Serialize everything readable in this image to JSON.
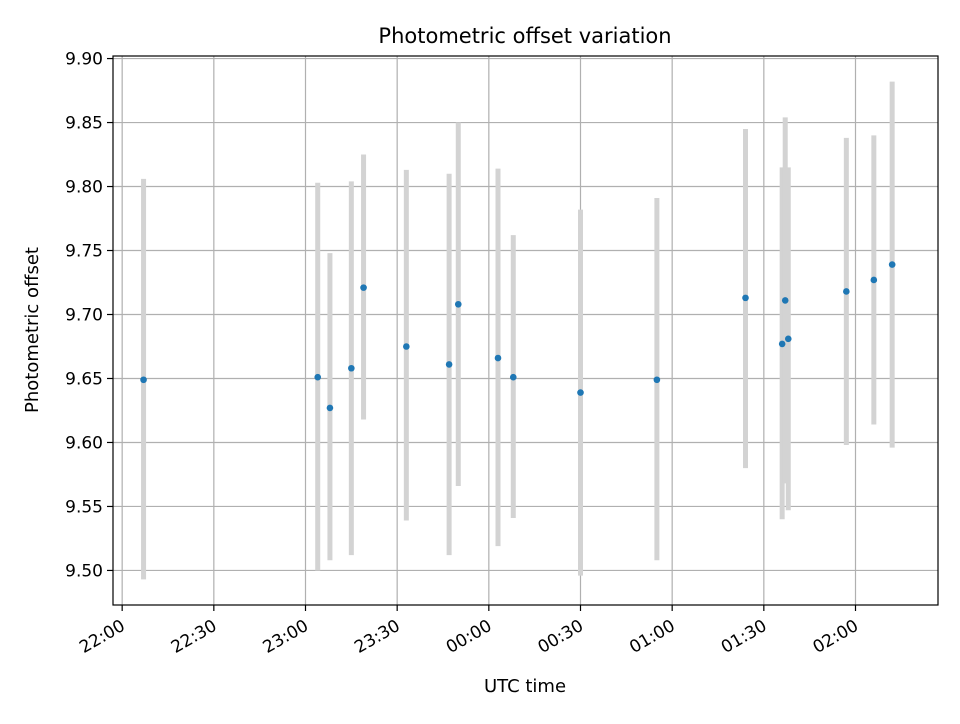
{
  "chart_data": {
    "type": "scatter",
    "title": "Photometric offset variation",
    "xlabel": "UTC time",
    "ylabel": "Photometric offset",
    "x_ticks": [
      "22:00",
      "22:30",
      "23:00",
      "23:30",
      "00:00",
      "00:30",
      "01:00",
      "01:30",
      "02:00"
    ],
    "y_ticks": [
      "9.50",
      "9.55",
      "9.60",
      "9.65",
      "9.70",
      "9.75",
      "9.80",
      "9.85",
      "9.90"
    ],
    "xlim": [
      "21:57",
      "02:27"
    ],
    "ylim": [
      9.473,
      9.902
    ],
    "grid": true,
    "colors": {
      "point": "#1f77b4",
      "errorbar": "#d3d3d3",
      "grid": "#b0b0b0"
    },
    "points": [
      {
        "x": "22:07",
        "y": 9.649,
        "yerr_low": 9.493,
        "yerr_high": 9.806
      },
      {
        "x": "23:04",
        "y": 9.651,
        "yerr_low": 9.5,
        "yerr_high": 9.803
      },
      {
        "x": "23:08",
        "y": 9.627,
        "yerr_low": 9.508,
        "yerr_high": 9.748
      },
      {
        "x": "23:15",
        "y": 9.658,
        "yerr_low": 9.512,
        "yerr_high": 9.804
      },
      {
        "x": "23:19",
        "y": 9.721,
        "yerr_low": 9.618,
        "yerr_high": 9.825
      },
      {
        "x": "23:33",
        "y": 9.675,
        "yerr_low": 9.539,
        "yerr_high": 9.813
      },
      {
        "x": "23:47",
        "y": 9.661,
        "yerr_low": 9.512,
        "yerr_high": 9.81
      },
      {
        "x": "23:50",
        "y": 9.708,
        "yerr_low": 9.566,
        "yerr_high": 9.85
      },
      {
        "x": "00:03",
        "y": 9.666,
        "yerr_low": 9.519,
        "yerr_high": 9.814
      },
      {
        "x": "00:08",
        "y": 9.651,
        "yerr_low": 9.541,
        "yerr_high": 9.762
      },
      {
        "x": "00:30",
        "y": 9.639,
        "yerr_low": 9.496,
        "yerr_high": 9.782
      },
      {
        "x": "00:55",
        "y": 9.649,
        "yerr_low": 9.508,
        "yerr_high": 9.791
      },
      {
        "x": "01:24",
        "y": 9.713,
        "yerr_low": 9.58,
        "yerr_high": 9.845
      },
      {
        "x": "01:36",
        "y": 9.677,
        "yerr_low": 9.54,
        "yerr_high": 9.815
      },
      {
        "x": "01:37",
        "y": 9.711,
        "yerr_low": 9.568,
        "yerr_high": 9.854
      },
      {
        "x": "01:38",
        "y": 9.681,
        "yerr_low": 9.547,
        "yerr_high": 9.815
      },
      {
        "x": "01:57",
        "y": 9.718,
        "yerr_low": 9.598,
        "yerr_high": 9.838
      },
      {
        "x": "02:06",
        "y": 9.727,
        "yerr_low": 9.614,
        "yerr_high": 9.84
      },
      {
        "x": "02:12",
        "y": 9.739,
        "yerr_low": 9.596,
        "yerr_high": 9.882
      }
    ]
  }
}
